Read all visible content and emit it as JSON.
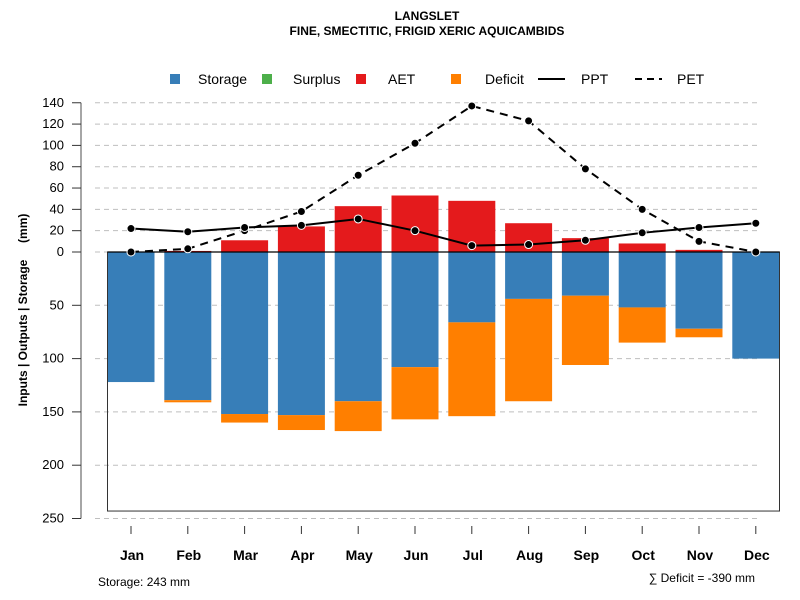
{
  "chart_data": {
    "type": "bar",
    "title": "LANGSLET",
    "subtitle": "FINE, SMECTITIC, FRIGID XERIC AQUICAMBIDS",
    "xlabel": "",
    "ylabel": "Inputs | Outputs | Storage     (mm)",
    "categories": [
      "Jan",
      "Feb",
      "Mar",
      "Apr",
      "May",
      "Jun",
      "Jul",
      "Aug",
      "Sep",
      "Oct",
      "Nov",
      "Dec"
    ],
    "upper_axis": {
      "ylim": [
        0,
        140
      ],
      "ticks": [
        "0",
        "20",
        "40",
        "60",
        "80",
        "100",
        "120",
        "140"
      ],
      "tick_values": [
        0,
        20,
        40,
        60,
        80,
        100,
        120,
        140
      ]
    },
    "lower_axis": {
      "ylim": [
        0,
        250
      ],
      "ticks": [
        "50",
        "100",
        "150",
        "200",
        "250"
      ],
      "tick_values": [
        50,
        100,
        150,
        200,
        250
      ]
    },
    "grid": true,
    "legend_position": "top",
    "legend": [
      {
        "name": "Storage",
        "kind": "box",
        "color": "#377EB8"
      },
      {
        "name": "Surplus",
        "kind": "box",
        "color": "#4DAF4A"
      },
      {
        "name": "AET",
        "kind": "box",
        "color": "#E41A1C"
      },
      {
        "name": "Deficit",
        "kind": "box",
        "color": "#FF7F00"
      },
      {
        "name": "PPT",
        "kind": "solid-line",
        "color": "#000000"
      },
      {
        "name": "PET",
        "kind": "dashed-line",
        "color": "#000000"
      }
    ],
    "series": [
      {
        "name": "AET",
        "type": "bar-up",
        "color": "#E41A1C",
        "values": [
          0,
          1,
          11,
          24,
          43,
          53,
          48,
          27,
          13,
          8,
          2,
          0
        ]
      },
      {
        "name": "Surplus",
        "type": "bar-up",
        "color": "#4DAF4A",
        "values": [
          0,
          0,
          0,
          0,
          0,
          0,
          0,
          0,
          0,
          0,
          0,
          0
        ]
      },
      {
        "name": "Storage",
        "type": "bar-down",
        "color": "#377EB8",
        "values": [
          122,
          139,
          152,
          153,
          140,
          108,
          66,
          44,
          41,
          52,
          72,
          100
        ]
      },
      {
        "name": "Deficit",
        "type": "bar-down-stacked",
        "color": "#FF7F00",
        "values": [
          0,
          2,
          8,
          14,
          28,
          49,
          88,
          96,
          65,
          33,
          8,
          0
        ]
      },
      {
        "name": "PPT",
        "type": "line",
        "color": "#000000",
        "values": [
          22,
          19,
          23,
          25,
          31,
          20,
          6,
          7,
          11,
          18,
          23,
          27
        ]
      },
      {
        "name": "PET",
        "type": "dashed-line",
        "color": "#000000",
        "values": [
          0,
          3,
          20,
          38,
          72,
          102,
          137,
          123,
          78,
          40,
          10,
          0
        ]
      }
    ],
    "storage_capacity": 243,
    "footer_left": "Storage: 243 mm",
    "footer_right": "∑ Deficit = -390 mm"
  }
}
